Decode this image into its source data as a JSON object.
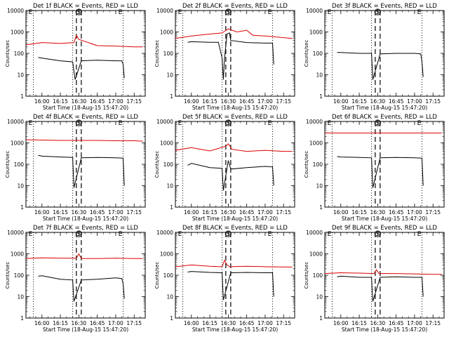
{
  "figure": {
    "ylabel": "Counts/sec",
    "xlabel": "Start Time (18-Aug-15 15:47:20)",
    "xticks": [
      "16:00",
      "16:15",
      "16:30",
      "16:45",
      "17:00",
      "17:15"
    ],
    "yticks": [
      "1",
      "10",
      "100",
      "1000",
      "10000"
    ],
    "marker_labels": [
      "E",
      "S",
      "E"
    ],
    "colors": {
      "events": "#000000",
      "lld": "#dd0000",
      "axes": "#000000"
    }
  },
  "chart_data": [
    {
      "type": "line",
      "title": "Det 1f BLACK = Events, RED = LLD",
      "xlabel": "Start Time (18-Aug-15 15:47:20)",
      "ylabel": "Counts/sec",
      "y_scale": "log",
      "ylim": [
        1,
        10000
      ],
      "xlim": [
        "15:47",
        "17:24"
      ],
      "markers": {
        "dotted": [
          "15:53",
          "16:25",
          "17:06"
        ],
        "dashed": [
          "16:28",
          "16:32"
        ]
      },
      "series": [
        {
          "name": "LLD",
          "color": "red",
          "x": [
            "15:47",
            "16:00",
            "16:15",
            "16:26",
            "16:28",
            "16:30",
            "16:45",
            "17:00",
            "17:15",
            "17:22"
          ],
          "y": [
            250,
            320,
            290,
            320,
            700,
            450,
            230,
            220,
            200,
            200
          ]
        },
        {
          "name": "Events",
          "color": "black",
          "x": [
            "15:57",
            "16:00",
            "16:15",
            "16:25",
            "16:27",
            "16:32",
            "16:45",
            "17:00",
            "17:05",
            "17:06",
            "17:07"
          ],
          "y": [
            65,
            60,
            45,
            40,
            6,
            45,
            48,
            45,
            45,
            30,
            7
          ]
        }
      ]
    },
    {
      "type": "line",
      "title": "Det 2f BLACK = Events, RED = LLD",
      "xlabel": "Start Time (18-Aug-15 15:47:20)",
      "ylabel": "Counts/sec",
      "y_scale": "log",
      "ylim": [
        1,
        10000
      ],
      "xlim": [
        "15:47",
        "17:24"
      ],
      "markers": {
        "dotted": [
          "15:53",
          "16:25",
          "17:06"
        ],
        "dashed": [
          "16:28",
          "16:32"
        ]
      },
      "series": [
        {
          "name": "LLD",
          "color": "red",
          "x": [
            "15:47",
            "16:00",
            "16:15",
            "16:25",
            "16:30",
            "16:37",
            "16:45",
            "16:50",
            "17:00",
            "17:22"
          ],
          "y": [
            500,
            650,
            800,
            900,
            1400,
            1000,
            1200,
            700,
            650,
            500
          ]
        },
        {
          "name": "Events",
          "color": "black",
          "x": [
            "15:57",
            "16:00",
            "16:15",
            "16:22",
            "16:25",
            "16:26",
            "16:27",
            "16:29",
            "16:31",
            "16:32",
            "16:45",
            "17:00",
            "17:06",
            "17:07"
          ],
          "y": [
            330,
            350,
            330,
            330,
            60,
            6,
            60,
            800,
            900,
            400,
            320,
            300,
            300,
            30
          ]
        }
      ]
    },
    {
      "type": "line",
      "title": "Det 3f BLACK = Events, RED = LLD",
      "xlabel": "Start Time (18-Aug-15 15:47:20)",
      "ylabel": "Counts/sec",
      "y_scale": "log",
      "ylim": [
        1,
        10000
      ],
      "xlim": [
        "15:47",
        "17:24"
      ],
      "markers": {
        "dotted": [
          "15:53",
          "16:25",
          "17:06"
        ],
        "dashed": [
          "16:28",
          "16:32"
        ]
      },
      "series": [
        {
          "name": "Events",
          "color": "black",
          "x": [
            "15:57",
            "16:00",
            "16:15",
            "16:25",
            "16:26",
            "16:32",
            "16:45",
            "17:00",
            "17:05",
            "17:06",
            "17:07"
          ],
          "y": [
            110,
            110,
            100,
            100,
            6,
            95,
            100,
            100,
            95,
            40,
            8
          ]
        }
      ]
    },
    {
      "type": "line",
      "title": "Det 4f BLACK = Events, RED = LLD",
      "xlabel": "Start Time (18-Aug-15 15:47:20)",
      "ylabel": "Counts/sec",
      "y_scale": "log",
      "ylim": [
        1,
        10000
      ],
      "xlim": [
        "15:47",
        "17:24"
      ],
      "markers": {
        "dotted": [
          "15:53",
          "16:25",
          "17:06"
        ],
        "dashed": [
          "16:28",
          "16:32"
        ]
      },
      "series": [
        {
          "name": "LLD",
          "color": "red",
          "x": [
            "15:47",
            "16:00",
            "16:15",
            "16:30",
            "16:45",
            "17:00",
            "17:15",
            "17:22"
          ],
          "y": [
            1400,
            1350,
            1300,
            1300,
            1300,
            1250,
            1250,
            1200
          ]
        },
        {
          "name": "Events",
          "color": "black",
          "x": [
            "15:57",
            "16:00",
            "16:15",
            "16:25",
            "16:26",
            "16:32",
            "16:45",
            "17:00",
            "17:06",
            "17:07"
          ],
          "y": [
            260,
            240,
            220,
            210,
            8,
            200,
            210,
            200,
            195,
            10
          ]
        }
      ]
    },
    {
      "type": "line",
      "title": "Det 5f BLACK = Events, RED = LLD",
      "xlabel": "Start Time (18-Aug-15 15:47:20)",
      "ylabel": "Counts/sec",
      "y_scale": "log",
      "ylim": [
        1,
        10000
      ],
      "xlim": [
        "15:47",
        "17:24"
      ],
      "markers": {
        "dotted": [
          "15:53",
          "16:25",
          "17:06"
        ],
        "dashed": [
          "16:28",
          "16:32"
        ]
      },
      "series": [
        {
          "name": "LLD",
          "color": "red",
          "x": [
            "15:47",
            "16:00",
            "16:15",
            "16:28",
            "16:30",
            "16:33",
            "16:45",
            "17:00",
            "17:15",
            "17:22"
          ],
          "y": [
            450,
            600,
            420,
            700,
            900,
            500,
            400,
            450,
            400,
            400
          ]
        },
        {
          "name": "Events",
          "color": "black",
          "x": [
            "15:57",
            "16:00",
            "16:15",
            "16:25",
            "16:26",
            "16:30",
            "16:32",
            "16:45",
            "17:00",
            "17:06",
            "17:07"
          ],
          "y": [
            90,
            110,
            70,
            65,
            6,
            150,
            60,
            70,
            80,
            75,
            10
          ]
        }
      ]
    },
    {
      "type": "line",
      "title": "Det 6f BLACK = Events, RED = LLD",
      "xlabel": "Start Time (18-Aug-15 15:47:20)",
      "ylabel": "Counts/sec",
      "y_scale": "log",
      "ylim": [
        1,
        10000
      ],
      "xlim": [
        "15:47",
        "17:24"
      ],
      "markers": {
        "dotted": [
          "15:53",
          "16:25",
          "17:06"
        ],
        "dashed": [
          "16:28",
          "16:32"
        ]
      },
      "series": [
        {
          "name": "LLD",
          "color": "red",
          "x": [
            "15:47",
            "17:22"
          ],
          "y": [
            2900,
            2900
          ]
        },
        {
          "name": "Events",
          "color": "black",
          "x": [
            "15:57",
            "16:00",
            "16:15",
            "16:25",
            "16:26",
            "16:32",
            "16:45",
            "17:00",
            "17:06",
            "17:07"
          ],
          "y": [
            230,
            220,
            210,
            200,
            8,
            200,
            210,
            200,
            195,
            10
          ]
        }
      ]
    },
    {
      "type": "line",
      "title": "Det 7f BLACK = Events, RED = LLD",
      "xlabel": "Start Time (18-Aug-15 15:47:20)",
      "ylabel": "Counts/sec",
      "y_scale": "log",
      "ylim": [
        1,
        10000
      ],
      "xlim": [
        "15:47",
        "17:24"
      ],
      "markers": {
        "dotted": [
          "15:53",
          "16:25",
          "17:06"
        ],
        "dashed": [
          "16:28",
          "16:32"
        ]
      },
      "series": [
        {
          "name": "LLD",
          "color": "red",
          "x": [
            "15:47",
            "16:00",
            "16:15",
            "16:28",
            "16:30",
            "16:32",
            "16:45",
            "17:00",
            "17:15",
            "17:22"
          ],
          "y": [
            600,
            650,
            620,
            620,
            1000,
            600,
            600,
            620,
            600,
            600
          ]
        },
        {
          "name": "Events",
          "color": "black",
          "x": [
            "15:57",
            "16:00",
            "16:15",
            "16:25",
            "16:26",
            "16:32",
            "16:45",
            "17:00",
            "17:05",
            "17:06",
            "17:07"
          ],
          "y": [
            90,
            95,
            65,
            60,
            6,
            60,
            65,
            75,
            70,
            40,
            8
          ]
        }
      ]
    },
    {
      "type": "line",
      "title": "Det 8f BLACK = Events, RED = LLD",
      "xlabel": "Start Time (18-Aug-15 15:47:20)",
      "ylabel": "Counts/sec",
      "y_scale": "log",
      "ylim": [
        1,
        10000
      ],
      "xlim": [
        "15:47",
        "17:24"
      ],
      "markers": {
        "dotted": [
          "15:53",
          "16:25",
          "17:06"
        ],
        "dashed": [
          "16:28",
          "16:32"
        ]
      },
      "series": [
        {
          "name": "LLD",
          "color": "red",
          "x": [
            "15:47",
            "16:00",
            "16:15",
            "16:25",
            "16:27",
            "16:29",
            "16:31",
            "16:45",
            "17:00",
            "17:22"
          ],
          "y": [
            250,
            300,
            260,
            250,
            500,
            300,
            250,
            260,
            250,
            240
          ]
        },
        {
          "name": "Events",
          "color": "black",
          "x": [
            "15:57",
            "16:00",
            "16:15",
            "16:25",
            "16:26",
            "16:32",
            "16:45",
            "17:00",
            "17:06",
            "17:07"
          ],
          "y": [
            140,
            150,
            135,
            130,
            7,
            130,
            135,
            130,
            130,
            10
          ]
        }
      ]
    },
    {
      "type": "line",
      "title": "Det 9f BLACK = Events, RED = LLD",
      "xlabel": "Start Time (18-Aug-15 15:47:20)",
      "ylabel": "Counts/sec",
      "y_scale": "log",
      "ylim": [
        1,
        10000
      ],
      "xlim": [
        "15:47",
        "17:24"
      ],
      "markers": {
        "dotted": [
          "15:53",
          "16:25",
          "17:06"
        ],
        "dashed": [
          "16:28",
          "16:32"
        ]
      },
      "series": [
        {
          "name": "LLD",
          "color": "red",
          "x": [
            "15:47",
            "16:00",
            "16:15",
            "16:27",
            "16:29",
            "16:31",
            "16:45",
            "17:00",
            "17:15",
            "17:22"
          ],
          "y": [
            120,
            130,
            125,
            120,
            180,
            120,
            120,
            115,
            110,
            110
          ]
        },
        {
          "name": "Events",
          "color": "black",
          "x": [
            "15:57",
            "16:00",
            "16:15",
            "16:25",
            "16:26",
            "16:32",
            "16:45",
            "17:00",
            "17:06",
            "17:07"
          ],
          "y": [
            85,
            90,
            80,
            80,
            6,
            80,
            85,
            80,
            80,
            10
          ]
        }
      ]
    }
  ]
}
